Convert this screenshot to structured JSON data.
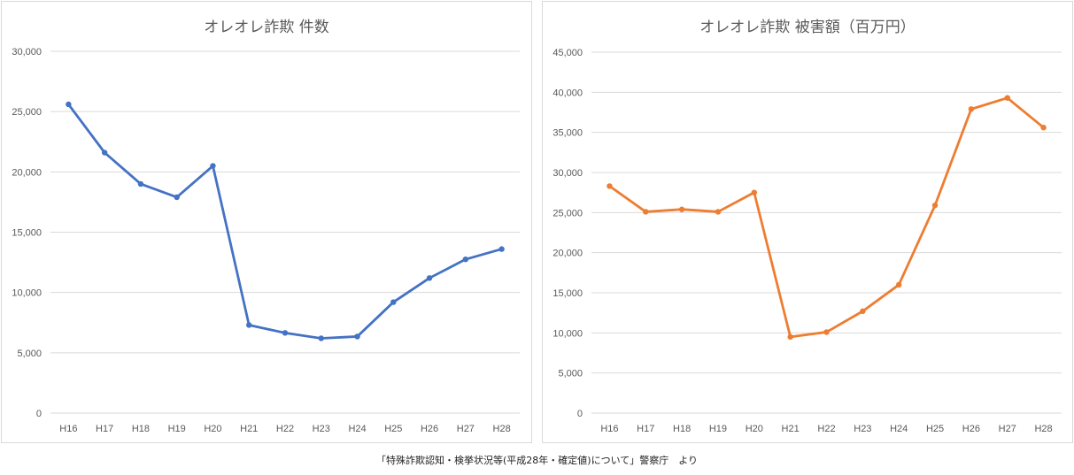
{
  "caption": "「特殊詐欺認知・検挙状況等(平成28年・確定値)について」警察庁　より",
  "chart_data": [
    {
      "type": "line",
      "title": "オレオレ詐欺 件数",
      "categories": [
        "H16",
        "H17",
        "H18",
        "H19",
        "H20",
        "H21",
        "H22",
        "H23",
        "H24",
        "H25",
        "H26",
        "H27",
        "H28"
      ],
      "series": [
        {
          "name": "件数",
          "values": [
            25600,
            21600,
            19000,
            17900,
            20500,
            7300,
            6650,
            6200,
            6350,
            9200,
            11200,
            12750,
            13600
          ],
          "color": "#4472c4"
        }
      ],
      "ylim": [
        0,
        30000
      ],
      "yticks": [
        0,
        5000,
        10000,
        15000,
        20000,
        25000,
        30000
      ],
      "ytick_labels": [
        "0",
        "5,000",
        "10,000",
        "15,000",
        "20,000",
        "25,000",
        "30,000"
      ],
      "xlabel": "",
      "ylabel": "",
      "grid": true
    },
    {
      "type": "line",
      "title": "オレオレ詐欺 被害額（百万円）",
      "categories": [
        "H16",
        "H17",
        "H18",
        "H19",
        "H20",
        "H21",
        "H22",
        "H23",
        "H24",
        "H25",
        "H26",
        "H27",
        "H28"
      ],
      "series": [
        {
          "name": "被害額",
          "values": [
            28300,
            25100,
            25400,
            25100,
            27500,
            9500,
            10100,
            12700,
            16000,
            25900,
            37900,
            39300,
            35600
          ],
          "color": "#ed7d31"
        }
      ],
      "ylim": [
        0,
        45000
      ],
      "yticks": [
        0,
        5000,
        10000,
        15000,
        20000,
        25000,
        30000,
        35000,
        40000,
        45000
      ],
      "ytick_labels": [
        "0",
        "5,000",
        "10,000",
        "15,000",
        "20,000",
        "25,000",
        "30,000",
        "35,000",
        "40,000",
        "45,000"
      ],
      "xlabel": "",
      "ylabel": "",
      "grid": true
    }
  ]
}
